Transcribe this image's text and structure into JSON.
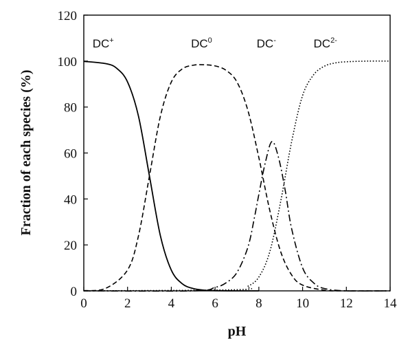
{
  "chart_data": {
    "type": "line",
    "xlabel": "pH",
    "ylabel": "Fraction of each species (%)",
    "xlim": [
      0,
      14
    ],
    "ylim": [
      0,
      120
    ],
    "xticks": [
      "0",
      "2",
      "4",
      "6",
      "8",
      "10",
      "12",
      "14"
    ],
    "yticks": [
      "0",
      "20",
      "40",
      "60",
      "80",
      "100",
      "120"
    ],
    "grid": false,
    "series": [
      {
        "name": "DC+",
        "label_base": "DC",
        "label_sup": "+",
        "line_style": "solid",
        "x": [
          0,
          1,
          1.5,
          2,
          2.5,
          3,
          3.5,
          4,
          4.5,
          5,
          5.5,
          6,
          7,
          8
        ],
        "y": [
          99.9,
          98.9,
          96.9,
          90.9,
          76.0,
          50.0,
          24.0,
          9.0,
          3.1,
          1.0,
          0.3,
          0.1,
          0,
          0
        ]
      },
      {
        "name": "DC0",
        "label_base": "DC",
        "label_sup": "0",
        "line_style": "dashed",
        "x": [
          0,
          1,
          2,
          2.5,
          3,
          3.5,
          4,
          4.5,
          5,
          5.5,
          6,
          6.5,
          7,
          7.5,
          8,
          8.5,
          9,
          9.5,
          10,
          11,
          12,
          14
        ],
        "y": [
          0.1,
          1.1,
          9.1,
          24.0,
          50.0,
          76.0,
          90.9,
          96.6,
          98.2,
          98.4,
          97.9,
          96.0,
          90.9,
          78.5,
          58.0,
          35.0,
          17.0,
          6.9,
          2.5,
          0.3,
          0,
          0
        ]
      },
      {
        "name": "DC-",
        "label_base": "DC",
        "label_sup": "-",
        "line_style": "dashdot",
        "x": [
          0,
          5,
          6,
          6.5,
          7,
          7.5,
          7.8,
          8,
          8.3,
          8.6,
          8.9,
          9.2,
          9.5,
          10,
          10.5,
          11,
          12,
          14
        ],
        "y": [
          0,
          0,
          1.5,
          3.5,
          8.0,
          19.0,
          32.0,
          42.0,
          56.0,
          65.0,
          58.0,
          44.0,
          27.0,
          10.0,
          3.5,
          1.0,
          0,
          0
        ]
      },
      {
        "name": "DC2-",
        "label_base": "DC",
        "label_sup": "2-",
        "line_style": "dotted",
        "x": [
          0,
          7,
          7.5,
          8,
          8.5,
          9,
          9.5,
          10,
          10.5,
          11,
          11.5,
          12,
          13,
          14
        ],
        "y": [
          0,
          0.5,
          2.0,
          6.0,
          17.0,
          39.0,
          65.0,
          85.0,
          94.0,
          97.8,
          99.2,
          99.7,
          100,
          100
        ]
      }
    ],
    "series_label_positions": [
      {
        "x": 0.4,
        "y": 106
      },
      {
        "x": 4.9,
        "y": 106
      },
      {
        "x": 7.9,
        "y": 106
      },
      {
        "x": 10.5,
        "y": 106
      }
    ]
  }
}
